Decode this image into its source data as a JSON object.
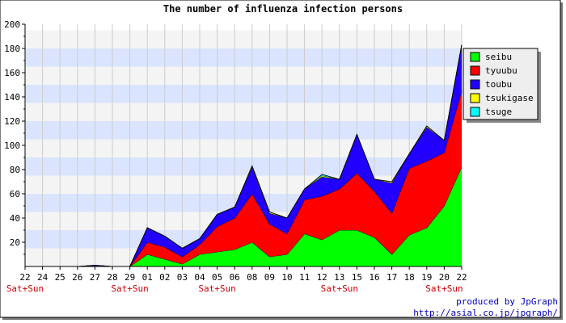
{
  "chart_data": {
    "type": "area",
    "title": "The number of influenza infection persons",
    "stacked": true,
    "ylim": [
      0,
      200
    ],
    "yticks": [
      20,
      40,
      60,
      80,
      100,
      120,
      140,
      160,
      180,
      200
    ],
    "x": [
      "22",
      "24",
      "25",
      "26",
      "27",
      "28",
      "29",
      "01",
      "02",
      "03",
      "04",
      "05",
      "06",
      "08",
      "09",
      "10",
      "11",
      "12",
      "13",
      "15",
      "16",
      "17",
      "18",
      "19",
      "20",
      "22"
    ],
    "weekend_label": "Sat+Sun",
    "weekend_markers": [
      "22",
      "29",
      "05",
      "13",
      "20"
    ],
    "series": [
      {
        "name": "seibu",
        "color": "#00ff00",
        "values": [
          0,
          0,
          0,
          0,
          0,
          0,
          0,
          10,
          6,
          2,
          10,
          12,
          14,
          20,
          8,
          10,
          27,
          22,
          30,
          30,
          24,
          10,
          26,
          32,
          50,
          82
        ]
      },
      {
        "name": "tyuubu",
        "color": "#ff0000",
        "values": [
          0,
          0,
          0,
          0,
          0,
          0,
          0,
          10,
          10,
          6,
          8,
          21,
          26,
          40,
          27,
          17,
          28,
          36,
          34,
          47,
          38,
          34,
          55,
          55,
          44,
          63
        ]
      },
      {
        "name": "toubu",
        "color": "#2200ff",
        "values": [
          0,
          0,
          0,
          0,
          1,
          0,
          0,
          12,
          9,
          7,
          5,
          10,
          9,
          22,
          9,
          13,
          9,
          16,
          8,
          32,
          10,
          25,
          12,
          28,
          10,
          38
        ]
      },
      {
        "name": "tsukigase",
        "color": "#ffff00",
        "values": [
          0,
          0,
          0,
          0,
          0,
          0,
          0,
          0,
          0,
          0,
          0,
          0,
          0,
          1,
          1,
          0,
          0,
          1,
          0,
          0,
          0,
          1,
          0,
          1,
          0,
          0
        ]
      },
      {
        "name": "tsuge",
        "color": "#00ffff",
        "values": [
          0,
          0,
          0,
          0,
          0,
          0,
          0,
          0,
          0,
          0,
          0,
          0,
          0,
          0,
          0,
          0,
          0,
          1,
          0,
          0,
          0,
          0,
          0,
          0,
          0,
          0
        ]
      }
    ],
    "grid": true,
    "legend": "right"
  },
  "credit": {
    "line1": "produced by JpGraph",
    "line2": "http://asial.co.jp/jpgraph/"
  },
  "colors": {
    "band_a": "#dbe4ff",
    "band_b": "#f4f4f4",
    "weekend": "#cc0000",
    "credit": "#0000bb",
    "legend_bg": "#eeeeee"
  }
}
